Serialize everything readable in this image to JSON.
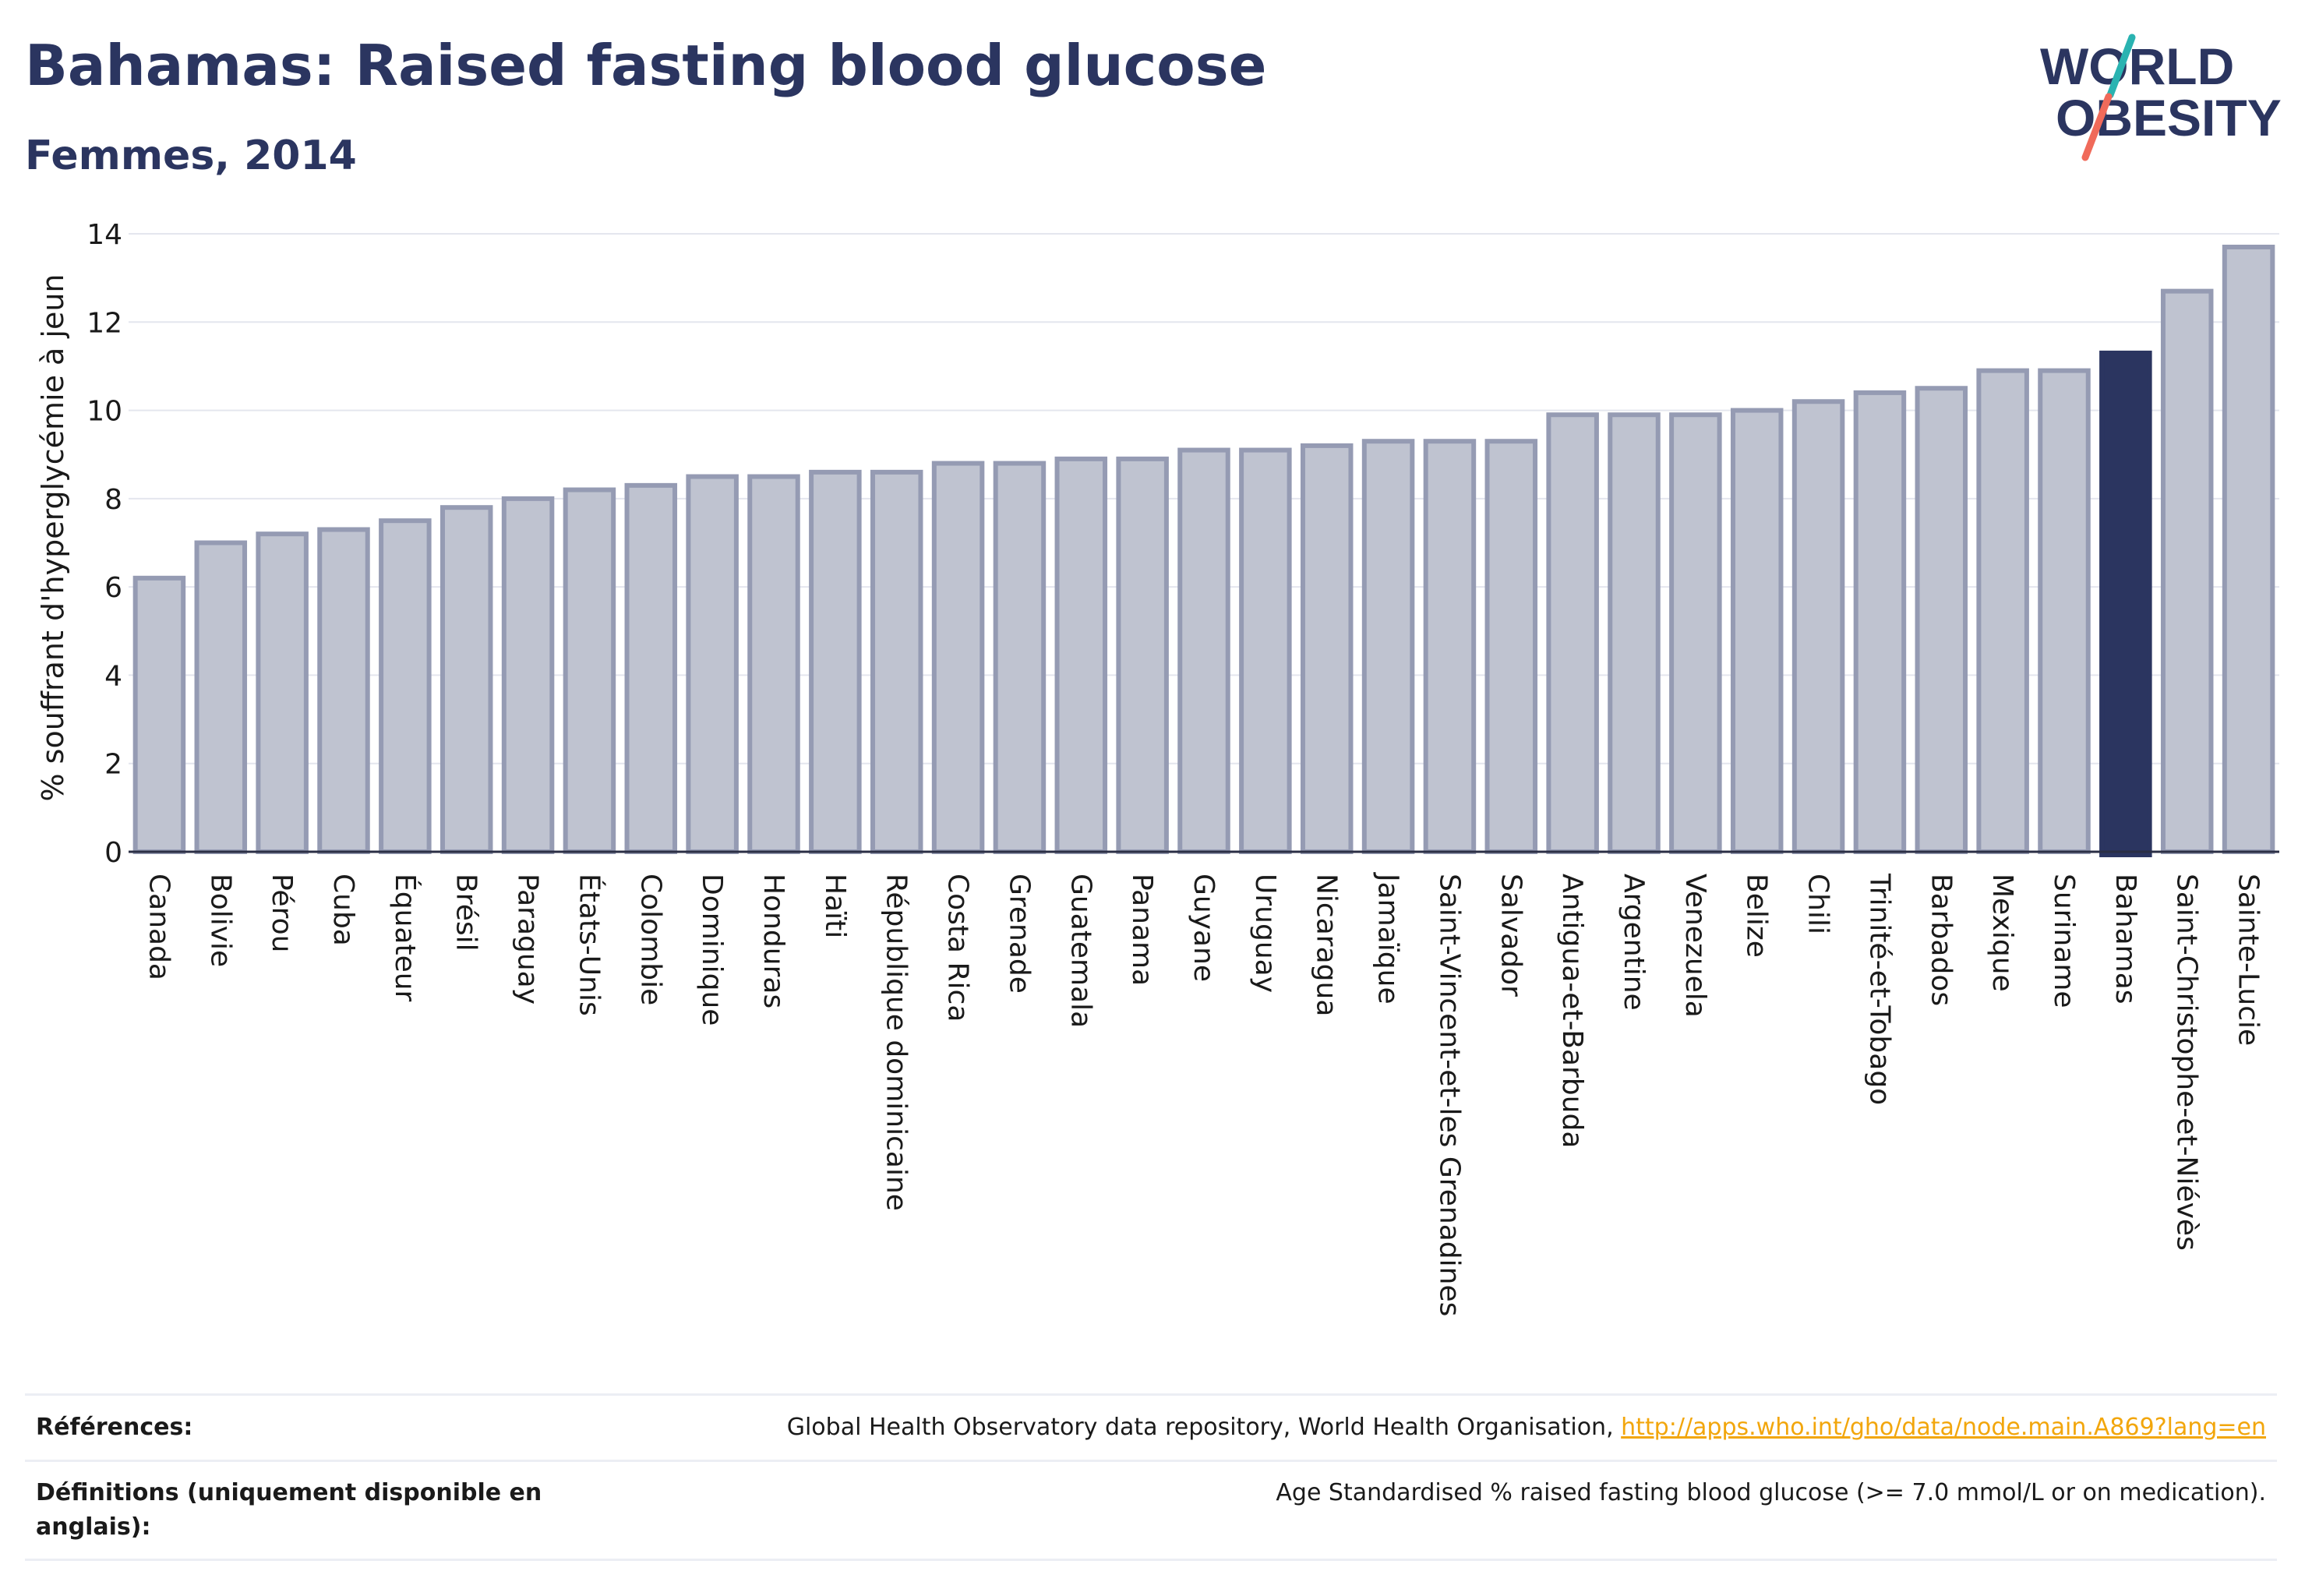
{
  "header": {
    "title": "Bahamas: Raised fasting blood glucose",
    "subtitle": "Femmes, 2014"
  },
  "logo": {
    "line1": "WORLD",
    "line2": "OBESITY"
  },
  "chart_data": {
    "type": "bar",
    "ylabel": "% souffrant d'hyperglycémie à jeun",
    "ylim": [
      0,
      14
    ],
    "yticks": [
      0,
      2,
      4,
      6,
      8,
      10,
      12,
      14
    ],
    "grid": true,
    "highlight": "Bahamas",
    "colors": {
      "bar": "#bfc3d0",
      "bar_edge": "#959bb3",
      "highlight": "#2b3560"
    },
    "categories": [
      "Canada",
      "Bolivie",
      "Pérou",
      "Cuba",
      "Équateur",
      "Brésil",
      "Paraguay",
      "États-Unis",
      "Colombie",
      "Dominique",
      "Honduras",
      "Haïti",
      "République dominicaine",
      "Costa Rica",
      "Grenade",
      "Guatemala",
      "Panama",
      "Guyane",
      "Uruguay",
      "Nicaragua",
      "Jamaïque",
      "Saint-Vincent-et-les Grenadines",
      "Salvador",
      "Antigua-et-Barbuda",
      "Argentine",
      "Venezuela",
      "Belize",
      "Chili",
      "Trinité-et-Tobago",
      "Barbados",
      "Mexique",
      "Suriname",
      "Bahamas",
      "Saint-Christophe-et-Niévès",
      "Sainte-Lucie"
    ],
    "values": [
      6.2,
      7.0,
      7.2,
      7.3,
      7.5,
      7.8,
      8.0,
      8.2,
      8.3,
      8.5,
      8.5,
      8.6,
      8.6,
      8.8,
      8.8,
      8.9,
      8.9,
      9.1,
      9.1,
      9.2,
      9.3,
      9.3,
      9.3,
      9.9,
      9.9,
      9.9,
      10.0,
      10.2,
      10.4,
      10.5,
      10.9,
      10.9,
      11.3,
      12.7,
      13.7
    ]
  },
  "references": {
    "ref_label": "Références:",
    "ref_text": "Global Health Observatory data repository, World Health Organisation, ",
    "ref_link": "http://apps.who.int/gho/data/node.main.A869?lang=en",
    "def_label": "Définitions (uniquement disponible en anglais):",
    "def_text": "Age Standardised % raised fasting blood glucose (>= 7.0 mmol/L or on medication)."
  }
}
